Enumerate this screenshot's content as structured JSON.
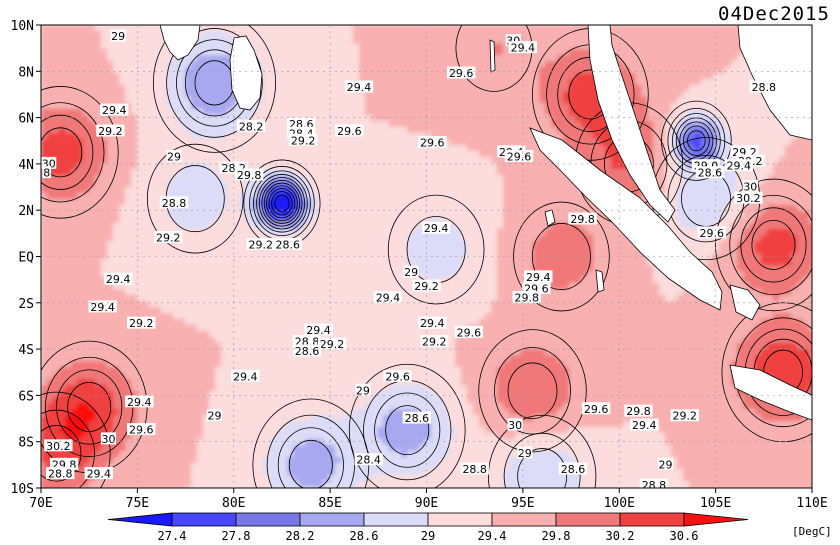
{
  "date_label": "04Dec2015",
  "unit_label": "[DegC]",
  "lat_ticks": [
    {
      "label": "10N",
      "lat": 10
    },
    {
      "label": "8N",
      "lat": 8
    },
    {
      "label": "6N",
      "lat": 6
    },
    {
      "label": "4N",
      "lat": 4
    },
    {
      "label": "2N",
      "lat": 2
    },
    {
      "label": "EQ",
      "lat": 0
    },
    {
      "label": "2S",
      "lat": -2
    },
    {
      "label": "4S",
      "lat": -4
    },
    {
      "label": "6S",
      "lat": -6
    },
    {
      "label": "8S",
      "lat": -8
    },
    {
      "label": "10S",
      "lat": -10
    }
  ],
  "lon_ticks": [
    {
      "label": "70E",
      "lon": 70
    },
    {
      "label": "75E",
      "lon": 75
    },
    {
      "label": "80E",
      "lon": 80
    },
    {
      "label": "85E",
      "lon": 85
    },
    {
      "label": "90E",
      "lon": 90
    },
    {
      "label": "95E",
      "lon": 95
    },
    {
      "label": "100E",
      "lon": 100
    },
    {
      "label": "105E",
      "lon": 105
    },
    {
      "label": "110E",
      "lon": 110
    }
  ],
  "colorbar": {
    "levels": [
      "27.4",
      "27.8",
      "28.2",
      "28.6",
      "29",
      "29.4",
      "29.8",
      "30.2",
      "30.6"
    ],
    "colors": [
      "#1a1aff",
      "#4646ff",
      "#7878e8",
      "#a8a8f0",
      "#dcdcf8",
      "#fcdcdc",
      "#f8b0b0",
      "#f07878",
      "#f04040",
      "#ff1010"
    ]
  },
  "chart_data": {
    "type": "heatmap",
    "variable": "sea surface temperature",
    "unit": "DegC",
    "date": "04Dec2015",
    "lon_range": [
      70,
      110
    ],
    "lat_range": [
      -10,
      10
    ],
    "color_levels": [
      27.4,
      27.8,
      28.2,
      28.6,
      29.0,
      29.4,
      29.8,
      30.2,
      30.6
    ],
    "background_value": 29.4,
    "features": [
      {
        "kind": "cold",
        "lon": 82.5,
        "lat": 2.3,
        "value": 27.0
      },
      {
        "kind": "cold",
        "lon": 79.0,
        "lat": 7.5,
        "value": 28.2
      },
      {
        "kind": "cold",
        "lon": 78.0,
        "lat": 2.5,
        "value": 28.8
      },
      {
        "kind": "cold",
        "lon": 104.0,
        "lat": 5.0,
        "value": 27.8
      },
      {
        "kind": "cold",
        "lon": 104.5,
        "lat": 2.5,
        "value": 28.6
      },
      {
        "kind": "cold",
        "lon": 89.0,
        "lat": -7.5,
        "value": 28.4
      },
      {
        "kind": "cold",
        "lon": 84.0,
        "lat": -9.0,
        "value": 28.4
      },
      {
        "kind": "cold",
        "lon": 96.0,
        "lat": -9.5,
        "value": 28.6
      },
      {
        "kind": "cold",
        "lon": 90.5,
        "lat": 0.3,
        "value": 28.8
      },
      {
        "kind": "warm",
        "lon": 71.0,
        "lat": 4.5,
        "value": 30.4
      },
      {
        "kind": "warm",
        "lon": 72.5,
        "lat": -6.5,
        "value": 30.4
      },
      {
        "kind": "warm",
        "lon": 70.8,
        "lat": -8.5,
        "value": 30.2
      },
      {
        "kind": "warm",
        "lon": 95.5,
        "lat": -5.8,
        "value": 30.2
      },
      {
        "kind": "warm",
        "lon": 98.5,
        "lat": 7.0,
        "value": 30.4
      },
      {
        "kind": "warm",
        "lon": 100.5,
        "lat": 4.0,
        "value": 30.2
      },
      {
        "kind": "warm",
        "lon": 108.0,
        "lat": 0.5,
        "value": 30.4
      },
      {
        "kind": "warm",
        "lon": 108.5,
        "lat": -5.0,
        "value": 30.6
      },
      {
        "kind": "warm",
        "lon": 97.0,
        "lat": 0.0,
        "value": 30.0
      },
      {
        "kind": "warm",
        "lon": 93.5,
        "lat": 9.0,
        "value": 29.8
      }
    ],
    "contour_labels": [
      {
        "text": "29",
        "lon": 74.0,
        "lat": 9.5
      },
      {
        "text": "30",
        "lon": 94.5,
        "lat": 9.3
      },
      {
        "text": "29.4",
        "lon": 95.0,
        "lat": 9.0
      },
      {
        "text": "29.6",
        "lon": 91.8,
        "lat": 7.9
      },
      {
        "text": "28.8",
        "lon": 107.5,
        "lat": 7.3
      },
      {
        "text": "29.4",
        "lon": 86.5,
        "lat": 7.3
      },
      {
        "text": "29.4",
        "lon": 73.8,
        "lat": 6.3
      },
      {
        "text": "28.2",
        "lon": 80.9,
        "lat": 5.6
      },
      {
        "text": "28.6",
        "lon": 83.5,
        "lat": 5.7
      },
      {
        "text": "29.2",
        "lon": 73.6,
        "lat": 5.4
      },
      {
        "text": "28.4",
        "lon": 83.5,
        "lat": 5.3
      },
      {
        "text": "29.6",
        "lon": 86.0,
        "lat": 5.4
      },
      {
        "text": "29.2",
        "lon": 83.6,
        "lat": 5.0
      },
      {
        "text": "29.6",
        "lon": 90.3,
        "lat": 4.9
      },
      {
        "text": "29.4",
        "lon": 94.4,
        "lat": 4.5
      },
      {
        "text": "29.6",
        "lon": 94.8,
        "lat": 4.3
      },
      {
        "text": "29",
        "lon": 76.9,
        "lat": 4.3
      },
      {
        "text": "29.2",
        "lon": 106.5,
        "lat": 4.5
      },
      {
        "text": "29.2",
        "lon": 106.8,
        "lat": 4.1
      },
      {
        "text": "29.4",
        "lon": 106.2,
        "lat": 3.9
      },
      {
        "text": "30",
        "lon": 70.4,
        "lat": 4.0
      },
      {
        "text": "28.2",
        "lon": 80.0,
        "lat": 3.8
      },
      {
        "text": "29.8",
        "lon": 80.8,
        "lat": 3.5
      },
      {
        "text": "29.0",
        "lon": 104.5,
        "lat": 3.9
      },
      {
        "text": "28.6",
        "lon": 104.7,
        "lat": 3.6
      },
      {
        "text": "8",
        "lon": 70.3,
        "lat": 3.6
      },
      {
        "text": "30",
        "lon": 106.8,
        "lat": 3.0
      },
      {
        "text": "30.2",
        "lon": 106.7,
        "lat": 2.5
      },
      {
        "text": "28.8",
        "lon": 76.9,
        "lat": 2.3
      },
      {
        "text": "29.8",
        "lon": 98.1,
        "lat": 1.6
      },
      {
        "text": "29.6",
        "lon": 104.8,
        "lat": 1.0
      },
      {
        "text": "29.4",
        "lon": 90.5,
        "lat": 1.2
      },
      {
        "text": "29.2",
        "lon": 76.6,
        "lat": 0.8
      },
      {
        "text": "29.2",
        "lon": 81.4,
        "lat": 0.5
      },
      {
        "text": "28.6",
        "lon": 82.8,
        "lat": 0.5
      },
      {
        "text": "29",
        "lon": 89.2,
        "lat": -0.7
      },
      {
        "text": "29.4",
        "lon": 95.8,
        "lat": -0.9
      },
      {
        "text": "29.2",
        "lon": 90.0,
        "lat": -1.3
      },
      {
        "text": "29.6",
        "lon": 95.7,
        "lat": -1.4
      },
      {
        "text": "29.4",
        "lon": 74.0,
        "lat": -1.0
      },
      {
        "text": "29.4",
        "lon": 88.0,
        "lat": -1.8
      },
      {
        "text": "29.8",
        "lon": 95.2,
        "lat": -1.8
      },
      {
        "text": "29.4",
        "lon": 73.2,
        "lat": -2.2
      },
      {
        "text": "29.2",
        "lon": 75.2,
        "lat": -2.9
      },
      {
        "text": "29.4",
        "lon": 84.4,
        "lat": -3.2
      },
      {
        "text": "29.4",
        "lon": 90.3,
        "lat": -2.9
      },
      {
        "text": "29.6",
        "lon": 92.2,
        "lat": -3.3
      },
      {
        "text": "28.8",
        "lon": 83.8,
        "lat": -3.7
      },
      {
        "text": "29.2",
        "lon": 85.1,
        "lat": -3.8
      },
      {
        "text": "29.2",
        "lon": 90.4,
        "lat": -3.7
      },
      {
        "text": "28.6",
        "lon": 83.8,
        "lat": -4.1
      },
      {
        "text": "29.4",
        "lon": 80.6,
        "lat": -5.2
      },
      {
        "text": "29.6",
        "lon": 88.5,
        "lat": -5.2
      },
      {
        "text": "29",
        "lon": 86.7,
        "lat": -5.8
      },
      {
        "text": "29.4",
        "lon": 75.1,
        "lat": -6.3
      },
      {
        "text": "29.6",
        "lon": 98.8,
        "lat": -6.6
      },
      {
        "text": "29.8",
        "lon": 101.0,
        "lat": -6.7
      },
      {
        "text": "29",
        "lon": 79.0,
        "lat": -6.9
      },
      {
        "text": "28.6",
        "lon": 89.5,
        "lat": -7.0
      },
      {
        "text": "29.2",
        "lon": 103.4,
        "lat": -6.9
      },
      {
        "text": "29.6",
        "lon": 75.2,
        "lat": -7.5
      },
      {
        "text": "30",
        "lon": 94.6,
        "lat": -7.3
      },
      {
        "text": "29.4",
        "lon": 101.3,
        "lat": -7.3
      },
      {
        "text": "30",
        "lon": 73.5,
        "lat": -7.9
      },
      {
        "text": "30.2",
        "lon": 70.9,
        "lat": -8.2
      },
      {
        "text": "29",
        "lon": 95.1,
        "lat": -8.5
      },
      {
        "text": "28.4",
        "lon": 87.0,
        "lat": -8.8
      },
      {
        "text": "29.8",
        "lon": 71.2,
        "lat": -9.0
      },
      {
        "text": "28.8",
        "lon": 92.5,
        "lat": -9.2
      },
      {
        "text": "28.6",
        "lon": 97.6,
        "lat": -9.2
      },
      {
        "text": "29",
        "lon": 102.4,
        "lat": -9.0
      },
      {
        "text": "29.4",
        "lon": 73.0,
        "lat": -9.4
      },
      {
        "text": "28.8",
        "lon": 71.0,
        "lat": -9.4
      },
      {
        "text": "28.8",
        "lon": 101.8,
        "lat": -9.9
      }
    ]
  }
}
